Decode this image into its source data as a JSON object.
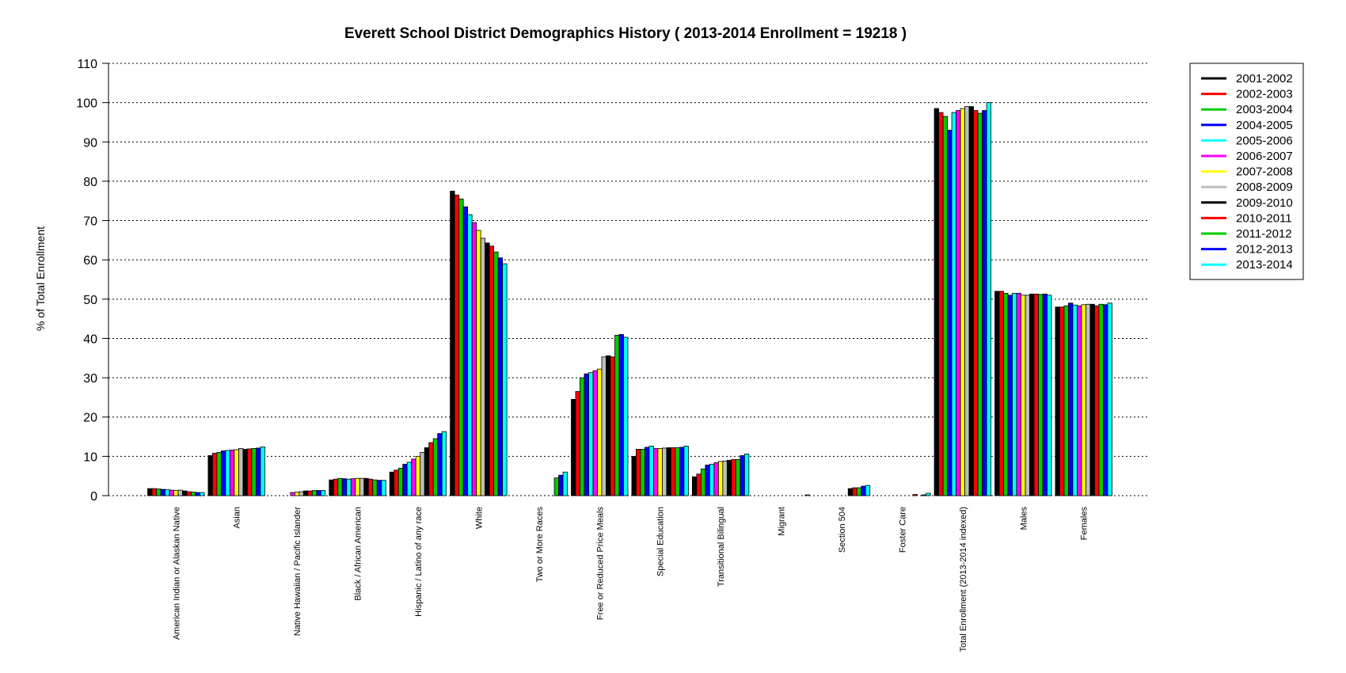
{
  "chart_data": {
    "type": "bar",
    "title": "Everett School District Demographics History  ( 2013-2014 Enrollment =  19218 )",
    "xlabel": "",
    "ylabel": "% of Total Enrollment",
    "ylim": [
      0,
      110
    ],
    "yticks": [
      0,
      10,
      20,
      30,
      40,
      50,
      60,
      70,
      80,
      90,
      100,
      110
    ],
    "grid": "horizontal dotted",
    "legend_position": "top-right",
    "categories": [
      "American Indian or Alaskan Native",
      "Asian",
      "Native Hawaiian / Pacific Islander",
      "Black / African American",
      "Hispanic / Latino of any race",
      "White",
      "Two or More Races",
      "Free or Reduced Price Meals",
      "Special Education",
      "Transitional Bilingual",
      "Migrant",
      "Section 504",
      "Foster Care",
      "Total Enrollment (2013-2014 indexed)",
      "Males",
      "Females"
    ],
    "series": [
      {
        "name": "2001-2002",
        "color": "#000000",
        "values": [
          1.8,
          10.2,
          0.0,
          4.0,
          6.0,
          77.5,
          0.0,
          24.5,
          10.0,
          4.8,
          0.0,
          0.0,
          0.0,
          98.5,
          52.0,
          48.0
        ]
      },
      {
        "name": "2002-2003",
        "color": "#ff0000",
        "values": [
          1.8,
          10.8,
          0.0,
          4.2,
          6.5,
          76.5,
          0.0,
          26.5,
          11.8,
          5.5,
          0.0,
          0.0,
          0.0,
          97.5,
          52.0,
          48.0
        ]
      },
      {
        "name": "2003-2004",
        "color": "#00cc00",
        "values": [
          1.7,
          11.0,
          0.0,
          4.4,
          7.0,
          75.5,
          0.0,
          30.0,
          11.8,
          6.8,
          0.0,
          0.0,
          0.0,
          96.5,
          51.5,
          48.3
        ]
      },
      {
        "name": "2004-2005",
        "color": "#0000ff",
        "values": [
          1.6,
          11.4,
          0.0,
          4.3,
          8.0,
          73.5,
          0.0,
          31.0,
          12.3,
          7.8,
          0.0,
          0.0,
          0.0,
          93.0,
          51.0,
          49.0
        ]
      },
      {
        "name": "2005-2006",
        "color": "#00ffff",
        "values": [
          1.5,
          11.5,
          0.0,
          4.2,
          8.5,
          71.5,
          0.0,
          31.3,
          12.6,
          8.0,
          0.0,
          0.0,
          0.0,
          97.5,
          51.5,
          48.5
        ]
      },
      {
        "name": "2006-2007",
        "color": "#ff00ff",
        "values": [
          1.4,
          11.6,
          0.8,
          4.3,
          9.3,
          69.5,
          0.0,
          31.8,
          12.0,
          8.4,
          0.0,
          0.0,
          0.0,
          98.0,
          51.5,
          48.3
        ]
      },
      {
        "name": "2007-2008",
        "color": "#ffff00",
        "values": [
          1.3,
          11.7,
          0.9,
          4.4,
          10.0,
          67.5,
          0.0,
          32.2,
          12.0,
          8.7,
          0.0,
          0.0,
          0.0,
          98.5,
          51.0,
          48.6
        ]
      },
      {
        "name": "2008-2009",
        "color": "#bebebe",
        "values": [
          1.4,
          12.0,
          1.0,
          4.4,
          11.0,
          65.5,
          0.0,
          35.3,
          12.1,
          8.8,
          0.0,
          0.0,
          0.0,
          99.0,
          51.0,
          48.7
        ]
      },
      {
        "name": "2009-2010",
        "color": "#000000",
        "values": [
          1.2,
          11.8,
          1.2,
          4.4,
          12.2,
          64.3,
          0.0,
          35.6,
          12.2,
          9.0,
          0.0,
          1.8,
          0.0,
          99.0,
          51.3,
          48.7
        ]
      },
      {
        "name": "2010-2011",
        "color": "#ff0000",
        "values": [
          1.0,
          11.9,
          1.2,
          4.2,
          13.5,
          63.5,
          0.0,
          35.3,
          12.2,
          9.2,
          0.0,
          2.0,
          0.3,
          98.0,
          51.3,
          48.3
        ]
      },
      {
        "name": "2011-2012",
        "color": "#00cc00",
        "values": [
          0.9,
          12.0,
          1.3,
          4.0,
          14.5,
          62.0,
          4.5,
          40.8,
          12.2,
          9.2,
          0.0,
          2.0,
          0.0,
          97.3,
          51.2,
          48.7
        ]
      },
      {
        "name": "2012-2013",
        "color": "#0000ff",
        "values": [
          0.8,
          12.1,
          1.3,
          3.9,
          15.8,
          60.5,
          5.2,
          41.0,
          12.3,
          10.2,
          0.0,
          2.4,
          0.2,
          98.0,
          51.3,
          48.6
        ]
      },
      {
        "name": "2013-2014",
        "color": "#00ffff",
        "values": [
          0.8,
          12.4,
          1.3,
          3.9,
          16.3,
          59.0,
          6.0,
          40.3,
          12.6,
          10.6,
          0.2,
          2.6,
          0.6,
          100.0,
          51.0,
          49.0
        ]
      }
    ]
  }
}
